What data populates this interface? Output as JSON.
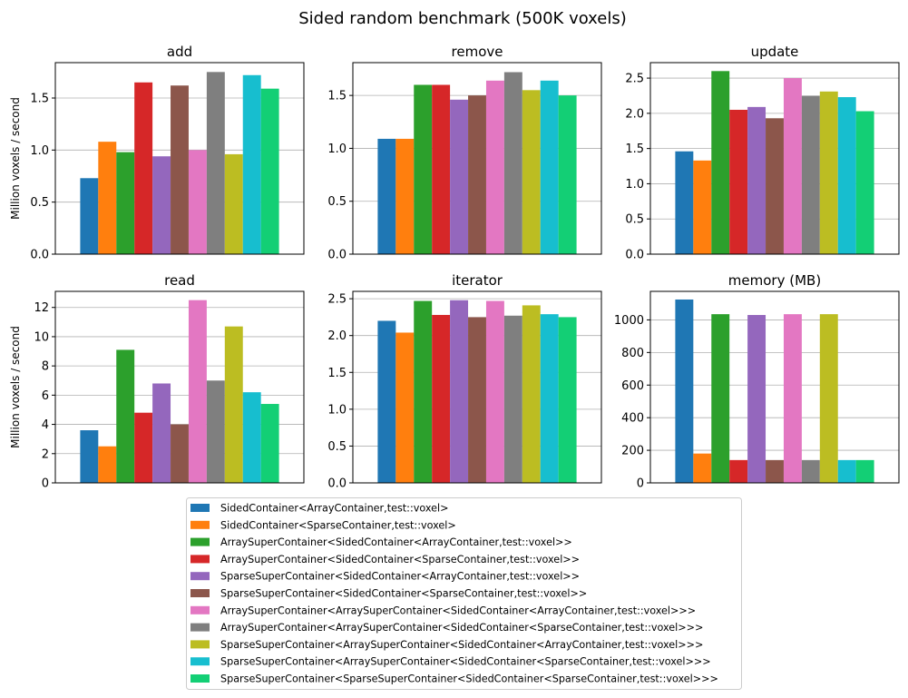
{
  "figure": {
    "title": "Sided random benchmark (500K voxels)",
    "ylabel": "Million voxels / second"
  },
  "chart_data": {
    "type": "bar",
    "title": "Sided random benchmark (500K voxels)",
    "ylabel": "Million voxels / second",
    "grid": "y",
    "legend_position": "bottom-center",
    "series": [
      {
        "name": "SidedContainer<ArrayContainer,test::voxel>",
        "color": "#1f77b4"
      },
      {
        "name": "SidedContainer<SparseContainer,test::voxel>",
        "color": "#ff7f0e"
      },
      {
        "name": "ArraySuperContainer<SidedContainer<ArrayContainer,test::voxel>>",
        "color": "#2ca02c"
      },
      {
        "name": "ArraySuperContainer<SidedContainer<SparseContainer,test::voxel>>",
        "color": "#d62728"
      },
      {
        "name": "SparseSuperContainer<SidedContainer<ArrayContainer,test::voxel>>",
        "color": "#9467bd"
      },
      {
        "name": "SparseSuperContainer<SidedContainer<SparseContainer,test::voxel>>",
        "color": "#8c564b"
      },
      {
        "name": "ArraySuperContainer<ArraySuperContainer<SidedContainer<ArrayContainer,test::voxel>>>",
        "color": "#e377c2"
      },
      {
        "name": "ArraySuperContainer<ArraySuperContainer<SidedContainer<SparseContainer,test::voxel>>>",
        "color": "#7f7f7f"
      },
      {
        "name": "SparseSuperContainer<ArraySuperContainer<SidedContainer<ArrayContainer,test::voxel>>>",
        "color": "#bcbd22"
      },
      {
        "name": "SparseSuperContainer<ArraySuperContainer<SidedContainer<SparseContainer,test::voxel>>>",
        "color": "#17becf"
      },
      {
        "name": "SparseSuperContainer<SparseSuperContainer<SidedContainer<SparseContainer,test::voxel>>>",
        "color": "#13cf75"
      }
    ],
    "subplots": [
      {
        "title": "add",
        "ylim": [
          0,
          1.84
        ],
        "yticks": [
          0.0,
          0.5,
          1.0,
          1.5
        ],
        "tick_decimals": 1,
        "values": [
          0.73,
          1.08,
          0.98,
          1.65,
          0.94,
          1.62,
          1.0,
          1.75,
          0.96,
          1.72,
          1.59
        ]
      },
      {
        "title": "remove",
        "ylim": [
          0,
          1.81
        ],
        "yticks": [
          0.0,
          0.5,
          1.0,
          1.5
        ],
        "tick_decimals": 1,
        "values": [
          1.09,
          1.09,
          1.6,
          1.6,
          1.46,
          1.5,
          1.64,
          1.72,
          1.55,
          1.64,
          1.5
        ]
      },
      {
        "title": "update",
        "ylim": [
          0,
          2.72
        ],
        "yticks": [
          0.0,
          0.5,
          1.0,
          1.5,
          2.0,
          2.5
        ],
        "tick_decimals": 1,
        "values": [
          1.46,
          1.33,
          2.6,
          2.05,
          2.09,
          1.93,
          2.5,
          2.25,
          2.31,
          2.23,
          2.03
        ]
      },
      {
        "title": "read",
        "ylim": [
          0,
          13.1
        ],
        "yticks": [
          0,
          2,
          4,
          6,
          8,
          10,
          12
        ],
        "tick_decimals": 0,
        "values": [
          3.6,
          2.5,
          9.1,
          4.8,
          6.8,
          4.0,
          12.5,
          7.0,
          10.7,
          6.2,
          5.4
        ]
      },
      {
        "title": "iterator",
        "ylim": [
          0,
          2.6
        ],
        "yticks": [
          0.0,
          0.5,
          1.0,
          1.5,
          2.0,
          2.5
        ],
        "tick_decimals": 1,
        "values": [
          2.2,
          2.04,
          2.47,
          2.28,
          2.48,
          2.25,
          2.47,
          2.27,
          2.41,
          2.29,
          2.25
        ]
      },
      {
        "title": "memory (MB)",
        "ylim": [
          0,
          1175
        ],
        "yticks": [
          0,
          200,
          400,
          600,
          800,
          1000
        ],
        "tick_decimals": 0,
        "values": [
          1125,
          180,
          1035,
          140,
          1030,
          140,
          1035,
          140,
          1035,
          140,
          140
        ]
      }
    ]
  }
}
